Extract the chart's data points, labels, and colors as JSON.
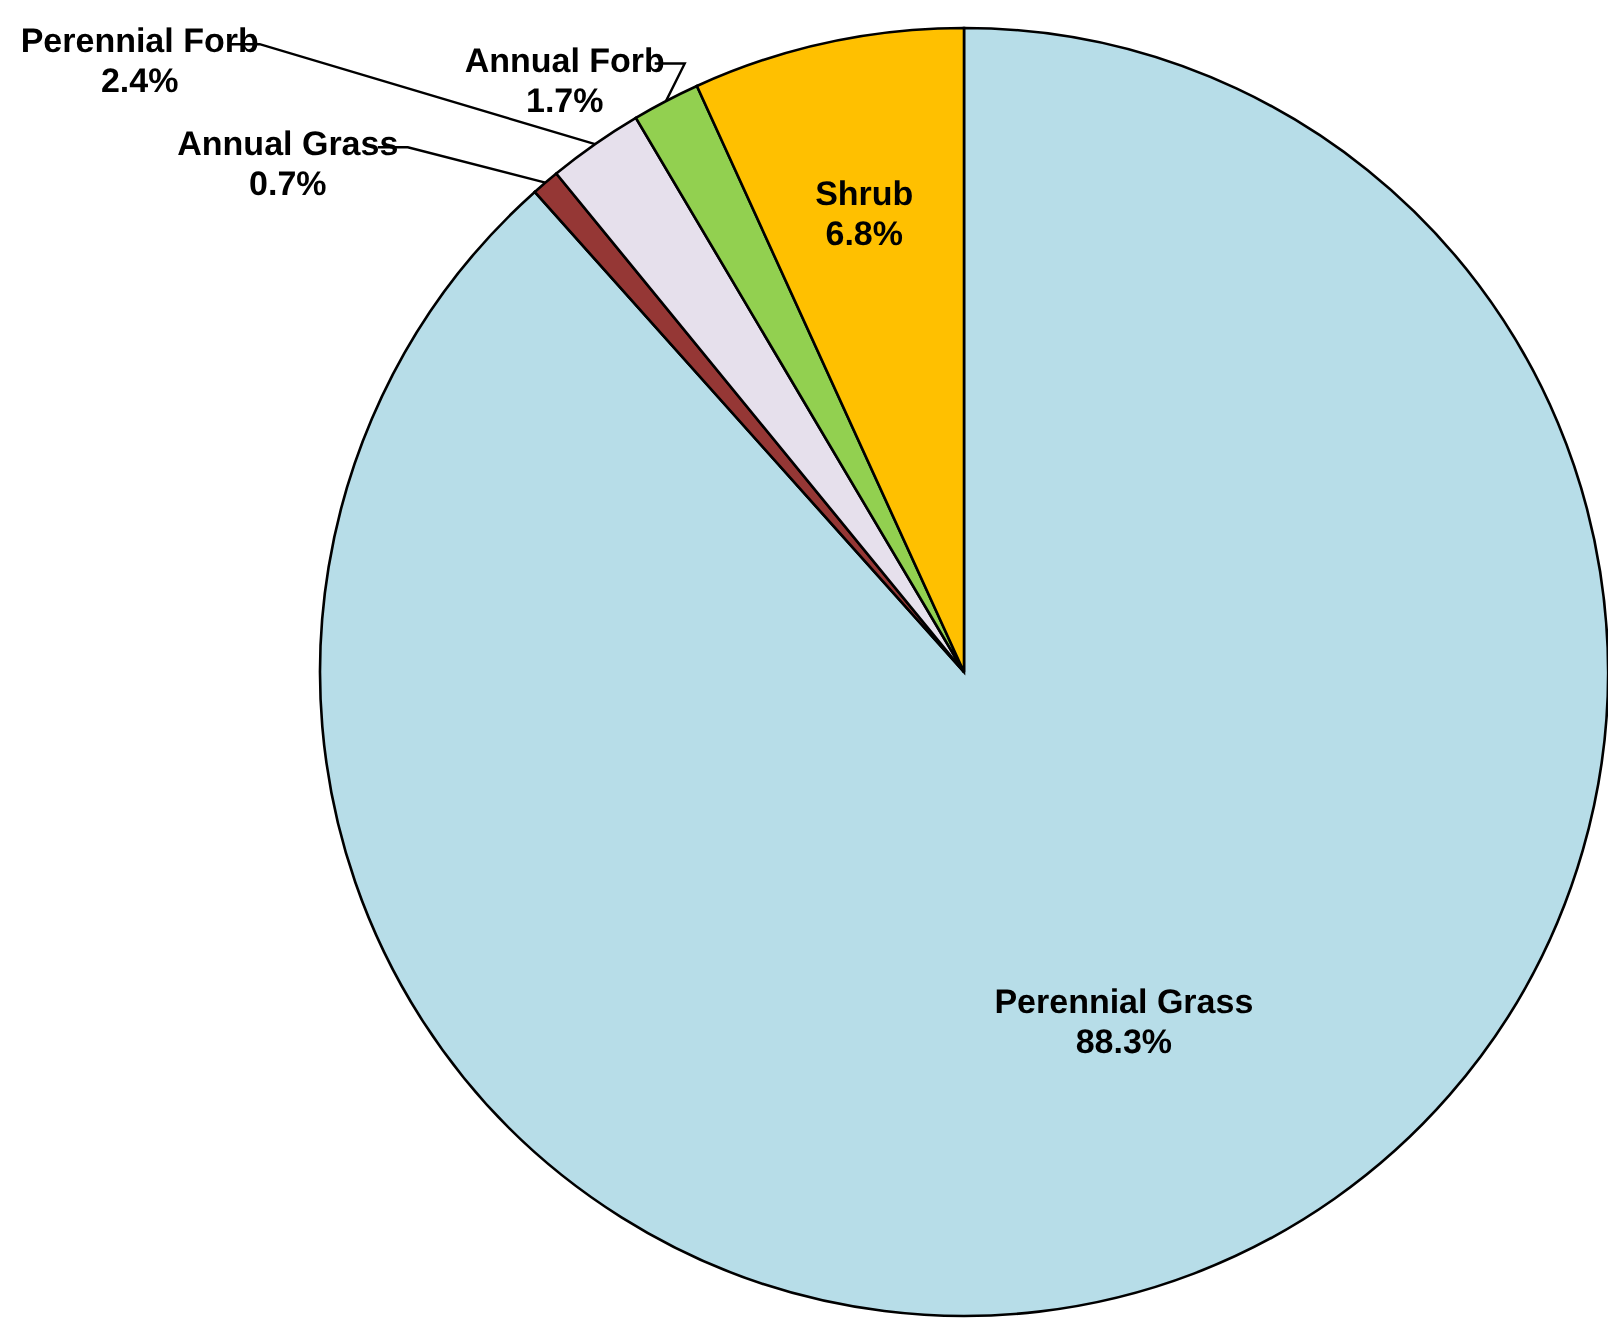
{
  "chart_data": {
    "type": "pie",
    "categories": [
      "Perennial Grass",
      "Annual Grass",
      "Perennial Forb",
      "Annual Forb",
      "Shrub"
    ],
    "values": [
      88.3,
      0.7,
      2.4,
      1.7,
      6.8
    ],
    "colors": [
      "#b7dde8",
      "#953735",
      "#e6e0ec",
      "#92d050",
      "#ffc000"
    ],
    "value_labels": [
      "88.3%",
      "0.7%",
      "2.4%",
      "1.7%",
      "6.8%"
    ],
    "legend": false
  }
}
